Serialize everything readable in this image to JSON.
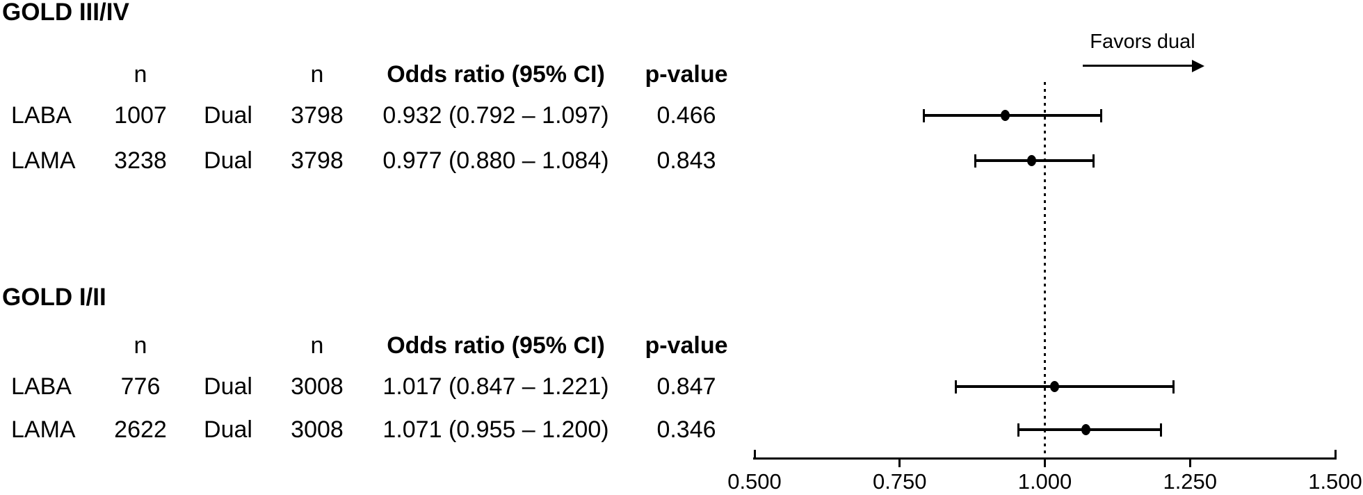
{
  "sections": [
    {
      "title": "GOLD III/IV",
      "headers": {
        "n1": "n",
        "n2": "n",
        "or": "Odds ratio (95% CI)",
        "p": "p-value"
      },
      "rows": [
        {
          "treatment": "LABA",
          "n1": "1007",
          "comparator": "Dual",
          "n2": "3798",
          "or_ci": "0.932 (0.792 – 1.097)",
          "p": "0.466"
        },
        {
          "treatment": "LAMA",
          "n1": "3238",
          "comparator": "Dual",
          "n2": "3798",
          "or_ci": "0.977 (0.880 – 1.084)",
          "p": "0.843"
        }
      ]
    },
    {
      "title": "GOLD I/II",
      "headers": {
        "n1": "n",
        "n2": "n",
        "or": "Odds ratio (95% CI)",
        "p": "p-value"
      },
      "rows": [
        {
          "treatment": "LABA",
          "n1": "776",
          "comparator": "Dual",
          "n2": "3008",
          "or_ci": "1.017 (0.847 – 1.221)",
          "p": "0.847"
        },
        {
          "treatment": "LAMA",
          "n1": "2622",
          "comparator": "Dual",
          "n2": "3008",
          "or_ci": "1.071 (0.955 – 1.200)",
          "p": "0.346"
        }
      ]
    }
  ],
  "plot": {
    "favors_label": "Favors dual"
  },
  "colors": {
    "text": "#000000",
    "background": "#ffffff",
    "marker": "#000000"
  },
  "chart_data": {
    "type": "forest",
    "title": "",
    "xlabel": "",
    "axis": {
      "min": 0.5,
      "max": 1.5,
      "tick_values": [
        0.5,
        0.75,
        1.0,
        1.25,
        1.5
      ],
      "ticks": [
        "0.500",
        "0.750",
        "1.000",
        "1.250",
        "1.500"
      ],
      "reference_line": 1.0,
      "reference_line_style": "dotted"
    },
    "annotation": "Favors dual",
    "points": [
      {
        "group": "GOLD III/IV",
        "label": "LABA vs Dual",
        "n_treatment": 1007,
        "n_comparator": 3798,
        "or": 0.932,
        "ci_low": 0.792,
        "ci_high": 1.097,
        "p": 0.466
      },
      {
        "group": "GOLD III/IV",
        "label": "LAMA vs Dual",
        "n_treatment": 3238,
        "n_comparator": 3798,
        "or": 0.977,
        "ci_low": 0.88,
        "ci_high": 1.084,
        "p": 0.843
      },
      {
        "group": "GOLD I/II",
        "label": "LABA vs Dual",
        "n_treatment": 776,
        "n_comparator": 3008,
        "or": 1.017,
        "ci_low": 0.847,
        "ci_high": 1.221,
        "p": 0.847
      },
      {
        "group": "GOLD I/II",
        "label": "LAMA vs Dual",
        "n_treatment": 2622,
        "n_comparator": 3008,
        "or": 1.071,
        "ci_low": 0.955,
        "ci_high": 1.2,
        "p": 0.346
      }
    ]
  }
}
